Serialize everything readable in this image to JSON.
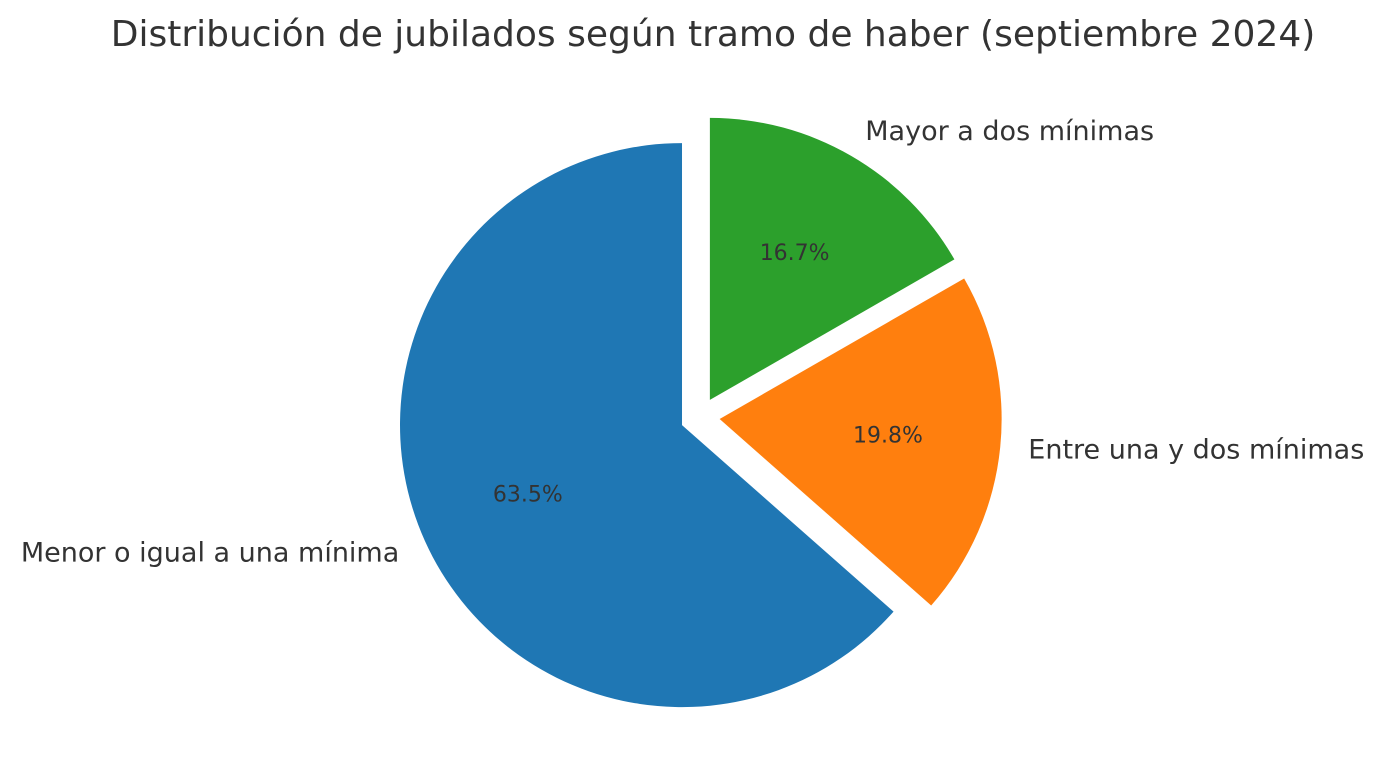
{
  "chart_data": {
    "type": "pie",
    "title": "Distribución de jubilados según tramo de haber (septiembre 2024)",
    "slices": [
      {
        "label": "Menor o igual a una mínima",
        "value": 63.5,
        "pct_label": "63.5%",
        "color": "#1f77b4"
      },
      {
        "label": "Entre una y dos mínimas",
        "value": 19.8,
        "pct_label": "19.8%",
        "color": "#ff7f0e"
      },
      {
        "label": "Mayor a dos mínimas",
        "value": 16.7,
        "pct_label": "16.7%",
        "color": "#2ca02c"
      }
    ],
    "start_angle": "12 o'clock",
    "direction": "counterclockwise",
    "exploded": true,
    "legend": "none"
  }
}
